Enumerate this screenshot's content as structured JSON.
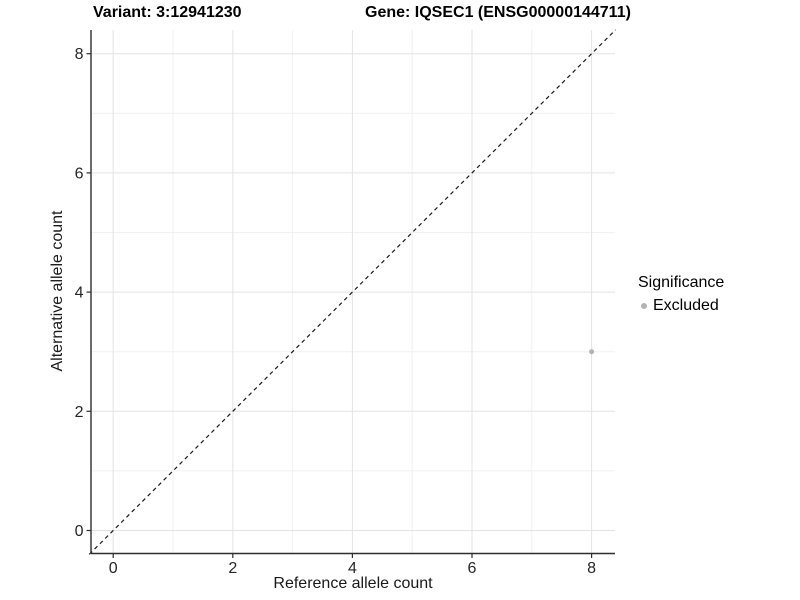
{
  "titles": {
    "variant": "Variant: 3:12941230",
    "gene": "Gene: IQSEC1 (ENSG00000144711)"
  },
  "chart_data": {
    "type": "scatter",
    "title_left": "Variant: 3:12941230",
    "title_right": "Gene: IQSEC1 (ENSG00000144711)",
    "xlabel": "Reference allele count",
    "ylabel": "Alternative allele count",
    "xlim": [
      -0.4,
      8.4
    ],
    "ylim": [
      -0.4,
      8.4
    ],
    "x_ticks": [
      0,
      2,
      4,
      6,
      8
    ],
    "y_ticks": [
      0,
      2,
      4,
      6,
      8
    ],
    "x_minor_ticks": [
      1,
      3,
      5,
      7
    ],
    "y_minor_ticks": [
      1,
      3,
      5,
      7
    ],
    "grid": "on",
    "reference_line": {
      "name": "identity-line",
      "style": "dashed",
      "from": [
        -0.4,
        -0.4
      ],
      "to": [
        8.4,
        8.4
      ],
      "color": "#1a1a1a"
    },
    "series": [
      {
        "name": "Excluded",
        "color": "#b3b3b3",
        "points": [
          {
            "x": 8,
            "y": 3
          }
        ]
      }
    ],
    "legend": {
      "title": "Significance",
      "position": "right",
      "items": [
        {
          "label": "Excluded",
          "color": "#b3b3b3"
        }
      ]
    }
  },
  "colors": {
    "background": "#ffffff",
    "grid_major": "#e3e3e3",
    "grid_minor": "#f1f1f1",
    "axis_line": "#2e2e2e",
    "tick_label": "#262626",
    "point": "#b3b3b3"
  }
}
